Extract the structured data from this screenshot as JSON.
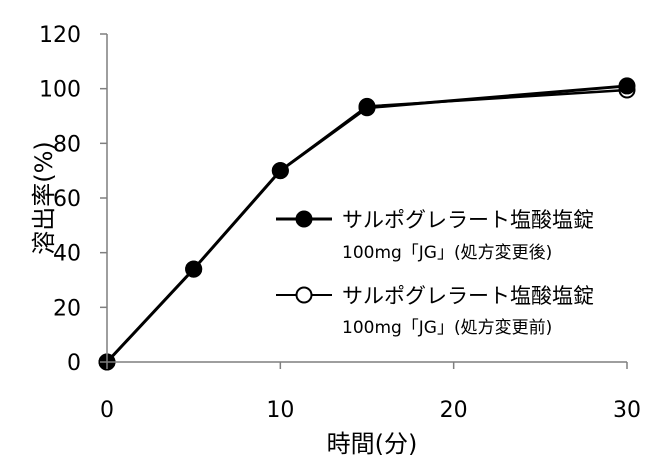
{
  "chart_data": {
    "type": "line",
    "xlabel": "時間(分)",
    "ylabel": "溶出率(%)",
    "xlim": [
      0,
      30
    ],
    "ylim": [
      0,
      120
    ],
    "x_ticks": [
      "0",
      "10",
      "20",
      "30"
    ],
    "y_ticks": [
      "0",
      "20",
      "40",
      "60",
      "80",
      "100",
      "120"
    ],
    "grid": false,
    "legend_position": "right",
    "series": [
      {
        "name": "サルポグレラート塩酸塩錠",
        "name_sub": "100mg「JG」(処方変更後)",
        "marker": "filled-circle",
        "color": "#000000",
        "x": [
          0,
          5,
          10,
          15,
          30
        ],
        "values": [
          0,
          34,
          70,
          93,
          101
        ]
      },
      {
        "name": "サルポグレラート塩酸塩錠",
        "name_sub": "100mg「JG」(処方変更前)",
        "marker": "open-circle",
        "color": "#000000",
        "x": [
          0,
          5,
          10,
          15,
          30
        ],
        "values": [
          0,
          34,
          70,
          93.5,
          99.5
        ]
      }
    ]
  }
}
